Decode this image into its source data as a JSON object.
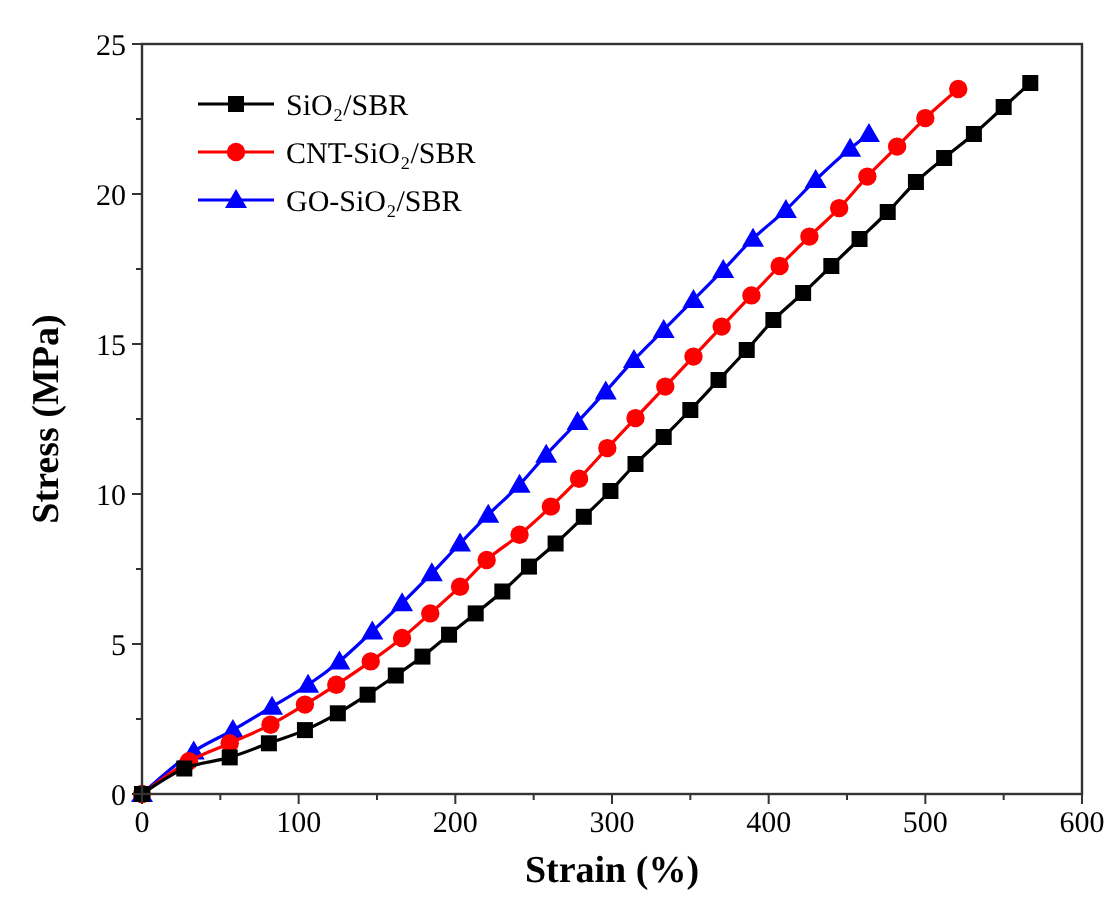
{
  "chart_data": {
    "type": "line",
    "xlabel": "Strain (%)",
    "ylabel": "Stress (MPa)",
    "xlim": [
      0,
      600
    ],
    "ylim": [
      0,
      25
    ],
    "xticks": [
      0,
      {
        "value": 50,
        "label": null
      },
      100,
      {
        "value": 150,
        "label": null
      },
      200,
      {
        "value": 250,
        "label": null
      },
      300,
      {
        "value": 350,
        "label": null
      },
      400,
      {
        "value": 450,
        "label": null
      },
      500,
      {
        "value": 550,
        "label": null
      },
      600
    ],
    "yticks": [
      0,
      {
        "value": 2.5,
        "label": null
      },
      5,
      {
        "value": 7.5,
        "label": null
      },
      10,
      {
        "value": 12.5,
        "label": null
      },
      15,
      {
        "value": 17.5,
        "label": null
      },
      20,
      {
        "value": 22.5,
        "label": null
      },
      25
    ],
    "grid": false,
    "legend": "top left",
    "line_style": "solid",
    "series": [
      {
        "name": "SiO₂/SBR",
        "color": "#000000",
        "marker": "square",
        "x": [
          0,
          27,
          56,
          81,
          104,
          125,
          144,
          162,
          179,
          196,
          213,
          230,
          247,
          264,
          282,
          299,
          315,
          333,
          350,
          368,
          386,
          403,
          422,
          440,
          458,
          476,
          494,
          512,
          531,
          550,
          567
        ],
        "values": [
          0,
          0.85,
          1.22,
          1.69,
          2.13,
          2.69,
          3.31,
          3.95,
          4.58,
          5.31,
          6.02,
          6.75,
          7.58,
          8.35,
          9.24,
          10.1,
          11.0,
          11.9,
          12.8,
          13.8,
          14.8,
          15.8,
          16.7,
          17.6,
          18.5,
          19.4,
          20.4,
          21.2,
          22.0,
          22.9,
          23.7
        ]
      },
      {
        "name": "CNT-SiO₂/SBR",
        "color": "#ff0000",
        "marker": "circle",
        "x": [
          0,
          30,
          56,
          82,
          104,
          124,
          146,
          166,
          184,
          203,
          220,
          241,
          261,
          279,
          297,
          315,
          334,
          352,
          370,
          389,
          407,
          426,
          445,
          463,
          482,
          500,
          521
        ],
        "values": [
          0,
          1.09,
          1.69,
          2.31,
          2.98,
          3.64,
          4.42,
          5.2,
          6.02,
          6.91,
          7.8,
          8.64,
          9.58,
          10.51,
          11.53,
          12.53,
          13.58,
          14.58,
          15.58,
          16.62,
          17.6,
          18.58,
          19.53,
          20.58,
          21.58,
          22.53,
          23.5
        ]
      },
      {
        "name": "GO-SiO₂/SBR",
        "color": "#0000ff",
        "marker": "triangle",
        "x": [
          0,
          33,
          58,
          83,
          106,
          126,
          147,
          166,
          185,
          203,
          221,
          241,
          258,
          278,
          296,
          314,
          333,
          352,
          371,
          390,
          411,
          430,
          452,
          464
        ],
        "values": [
          0,
          1.42,
          2.13,
          2.91,
          3.64,
          4.42,
          5.42,
          6.36,
          7.36,
          8.35,
          9.31,
          10.31,
          11.31,
          12.4,
          13.42,
          14.47,
          15.47,
          16.47,
          17.47,
          18.51,
          19.47,
          20.47,
          21.51,
          22.0
        ]
      }
    ]
  }
}
